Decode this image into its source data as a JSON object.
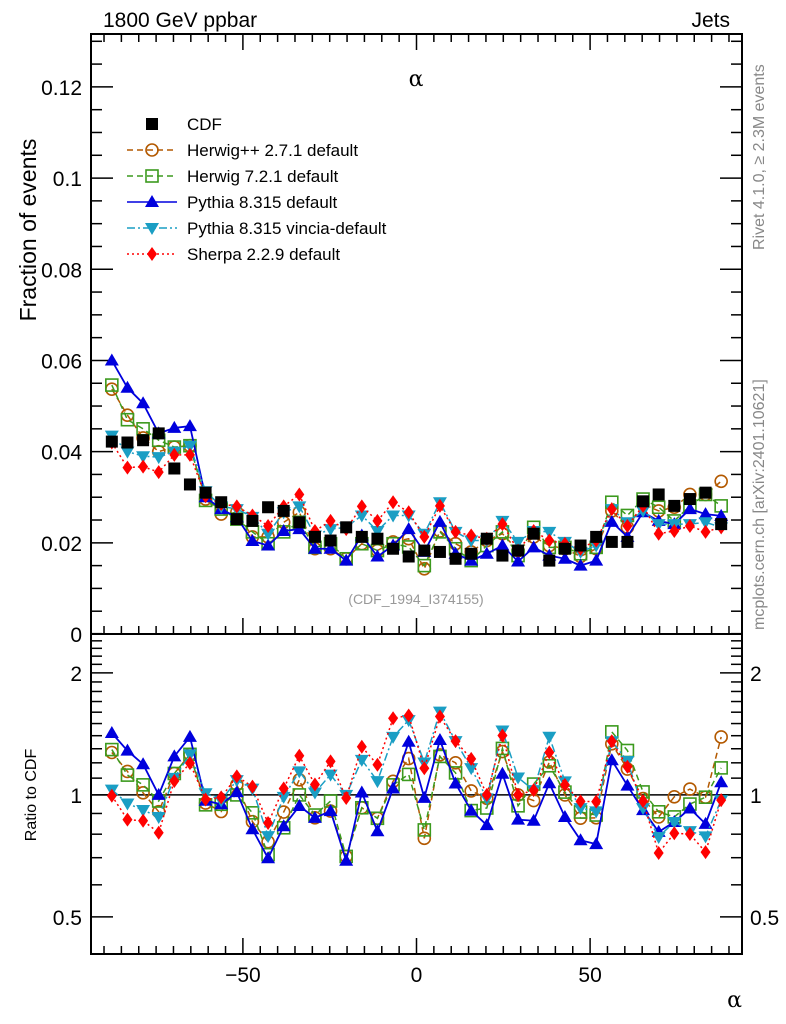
{
  "chart_data": {
    "type": "line",
    "header_left": "1800 GeV ppbar",
    "header_right": "Jets",
    "title": "α",
    "xlabel": "α",
    "ylabel": "Fraction of events",
    "ratio_ylabel": "Ratio to CDF",
    "reference_label": "(CDF_1994_I374155)",
    "side_text_top": "Rivet 4.1.0, ≥ 2.3M events",
    "side_text_bottom": "mcplots.cern.ch [arXiv:2401.10621]",
    "xlim": [
      -93.75,
      93.75
    ],
    "ylim": [
      0,
      0.1316
    ],
    "ratio_ylim": [
      0.405,
      2.495
    ],
    "ratio_scale": "log",
    "grid": false,
    "legend_position": "top-left",
    "x_ticks": [
      -50,
      0,
      50
    ],
    "x_tick_labels": [
      "−50",
      "0",
      "50"
    ],
    "y_ticks": [
      0,
      0.02,
      0.04,
      0.06,
      0.08,
      0.1,
      0.12
    ],
    "y_tick_labels": [
      "0",
      "0.02",
      "0.04",
      "0.06",
      "0.08",
      "0.1",
      "0.12"
    ],
    "ratio_ticks": [
      0.5,
      1,
      2
    ],
    "ratio_tick_labels": [
      "0.5",
      "1",
      "2"
    ],
    "x": [
      -87.75,
      -83.25,
      -78.75,
      -74.25,
      -69.75,
      -65.25,
      -60.75,
      -56.25,
      -51.75,
      -47.25,
      -42.75,
      -38.25,
      -33.75,
      -29.25,
      -24.75,
      -20.25,
      -15.75,
      -11.25,
      -6.75,
      -2.25,
      2.25,
      6.75,
      11.25,
      15.75,
      20.25,
      24.75,
      29.25,
      33.75,
      38.25,
      42.75,
      47.25,
      51.75,
      56.25,
      60.75,
      65.25,
      69.75,
      74.25,
      78.75,
      83.25,
      87.75
    ],
    "series": [
      {
        "name": "CDF",
        "color": "#000000",
        "marker": "square-filled",
        "line": "none",
        "values": [
          0.0422,
          0.042,
          0.0425,
          0.044,
          0.0363,
          0.0328,
          0.031,
          0.0289,
          0.0252,
          0.0248,
          0.0278,
          0.027,
          0.0245,
          0.0213,
          0.0205,
          0.0234,
          0.0213,
          0.0209,
          0.0187,
          0.017,
          0.0183,
          0.018,
          0.0165,
          0.0176,
          0.0209,
          0.0172,
          0.0183,
          0.022,
          0.0161,
          0.0187,
          0.0194,
          0.0213,
          0.0202,
          0.0202,
          0.0291,
          0.0306,
          0.0281,
          0.0296,
          0.031,
          0.0241
        ]
      },
      {
        "name": "Herwig++ 2.7.1 default",
        "color": "#b35900",
        "marker": "circle-open",
        "line": "dashed",
        "values": [
          0.0537,
          0.048,
          0.043,
          0.04,
          0.041,
          0.0413,
          0.0296,
          0.0263,
          0.0267,
          0.0213,
          0.0213,
          0.0245,
          0.0267,
          0.0187,
          0.0187,
          0.0165,
          0.0198,
          0.0183,
          0.0202,
          0.0209,
          0.0143,
          0.0226,
          0.0198,
          0.018,
          0.0205,
          0.022,
          0.0183,
          0.0213,
          0.0194,
          0.0187,
          0.017,
          0.0187,
          0.027,
          0.0234,
          0.0285,
          0.027,
          0.0278,
          0.0306,
          0.0306,
          0.0335
        ]
      },
      {
        "name": "Herwig 7.2.1 default",
        "color": "#3c9a1e",
        "marker": "square-open",
        "line": "dashed",
        "values": [
          0.0546,
          0.047,
          0.045,
          0.0425,
          0.041,
          0.0413,
          0.0293,
          0.0274,
          0.0252,
          0.0224,
          0.0198,
          0.0224,
          0.0245,
          0.019,
          0.0198,
          0.0165,
          0.0198,
          0.0183,
          0.0198,
          0.0191,
          0.015,
          0.0224,
          0.0187,
          0.0161,
          0.0194,
          0.0224,
          0.0172,
          0.0234,
          0.019,
          0.019,
          0.0176,
          0.019,
          0.0289,
          0.026,
          0.0296,
          0.0278,
          0.0248,
          0.0281,
          0.0306,
          0.0281
        ]
      },
      {
        "name": "Pythia 8.315 default",
        "color": "#0000dd",
        "marker": "triangle-up-filled",
        "line": "solid",
        "values": [
          0.06,
          0.054,
          0.0506,
          0.044,
          0.0452,
          0.0456,
          0.03,
          0.0274,
          0.0256,
          0.0204,
          0.0194,
          0.0226,
          0.023,
          0.0187,
          0.0187,
          0.0161,
          0.0216,
          0.017,
          0.0194,
          0.023,
          0.018,
          0.0246,
          0.0176,
          0.0161,
          0.0176,
          0.0194,
          0.0159,
          0.019,
          0.0172,
          0.0165,
          0.015,
          0.0161,
          0.0246,
          0.0213,
          0.0267,
          0.0248,
          0.0241,
          0.0274,
          0.0263,
          0.0259
        ]
      },
      {
        "name": "Pythia 8.315 vincia-default",
        "color": "#1a9ec4",
        "marker": "triangle-down-filled",
        "line": "dashdot",
        "values": [
          0.0435,
          0.04,
          0.039,
          0.0388,
          0.04,
          0.0413,
          0.0313,
          0.028,
          0.0274,
          0.0257,
          0.022,
          0.0267,
          0.028,
          0.0216,
          0.023,
          0.0234,
          0.026,
          0.0226,
          0.026,
          0.026,
          0.022,
          0.0289,
          0.0224,
          0.0205,
          0.0205,
          0.0248,
          0.0202,
          0.0226,
          0.0224,
          0.0202,
          0.018,
          0.0194,
          0.0274,
          0.0245,
          0.027,
          0.0241,
          0.0241,
          0.0241,
          0.0245,
          0.0234
        ]
      },
      {
        "name": "Sherpa 2.2.9 default",
        "color": "#ff0000",
        "marker": "diamond-filled",
        "line": "dotted",
        "values": [
          0.042,
          0.0365,
          0.0367,
          0.0355,
          0.0393,
          0.0393,
          0.0302,
          0.0285,
          0.028,
          0.026,
          0.0237,
          0.028,
          0.0306,
          0.0226,
          0.0248,
          0.023,
          0.028,
          0.0248,
          0.0289,
          0.0267,
          0.0213,
          0.0281,
          0.0224,
          0.0216,
          0.0209,
          0.0241,
          0.0183,
          0.0226,
          0.0205,
          0.0198,
          0.0187,
          0.0205,
          0.0274,
          0.0237,
          0.0281,
          0.022,
          0.0226,
          0.0237,
          0.0224,
          0.0234
        ]
      }
    ]
  }
}
